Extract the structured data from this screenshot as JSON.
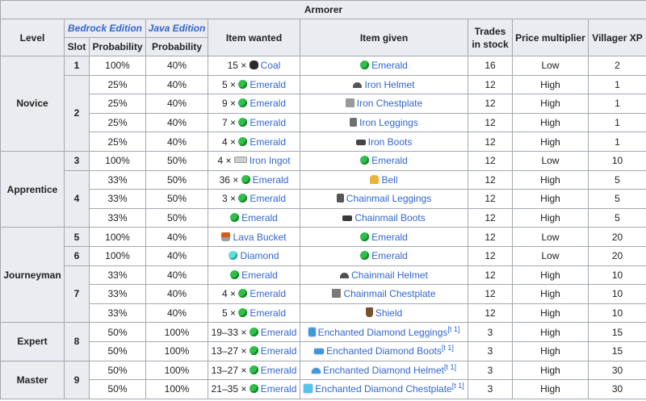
{
  "title": "Armorer",
  "headers": {
    "level": "Level",
    "bedrock": "Bedrock Edition",
    "java": "Java Edition",
    "slot": "Slot",
    "probability": "Probability",
    "item_wanted": "Item wanted",
    "item_given": "Item given",
    "trades_in_stock": "Trades in stock",
    "price_multiplier": "Price multiplier",
    "villager_xp": "Villager XP"
  },
  "levels": [
    {
      "name": "Novice",
      "slots": [
        {
          "slot": "1",
          "rows": [
            {
              "bp": "100%",
              "jp": "40%",
              "wq": "15 ×",
              "wicon": "coal-icon",
              "wname": "Coal",
              "gicon": "emerald-icon",
              "gname": "Emerald",
              "gnote": "",
              "stock": "16",
              "mult": "Low",
              "xp": "2"
            }
          ]
        },
        {
          "slot": "2",
          "rows": [
            {
              "bp": "25%",
              "jp": "40%",
              "wq": "5 ×",
              "wicon": "emerald-icon",
              "wname": "Emerald",
              "gicon": "iron-helmet-icon",
              "gname": "Iron Helmet",
              "gnote": "",
              "stock": "12",
              "mult": "High",
              "xp": "1"
            },
            {
              "bp": "25%",
              "jp": "40%",
              "wq": "9 ×",
              "wicon": "emerald-icon",
              "wname": "Emerald",
              "gicon": "iron-chestplate-icon",
              "gname": "Iron Chestplate",
              "gnote": "",
              "stock": "12",
              "mult": "High",
              "xp": "1"
            },
            {
              "bp": "25%",
              "jp": "40%",
              "wq": "7 ×",
              "wicon": "emerald-icon",
              "wname": "Emerald",
              "gicon": "iron-leggings-icon",
              "gname": "Iron Leggings",
              "gnote": "",
              "stock": "12",
              "mult": "High",
              "xp": "1"
            },
            {
              "bp": "25%",
              "jp": "40%",
              "wq": "4 ×",
              "wicon": "emerald-icon",
              "wname": "Emerald",
              "gicon": "iron-boots-icon",
              "gname": "Iron Boots",
              "gnote": "",
              "stock": "12",
              "mult": "High",
              "xp": "1"
            }
          ]
        }
      ]
    },
    {
      "name": "Apprentice",
      "slots": [
        {
          "slot": "3",
          "rows": [
            {
              "bp": "100%",
              "jp": "50%",
              "wq": "4 ×",
              "wicon": "iron-ingot-icon",
              "wname": "Iron Ingot",
              "gicon": "emerald-icon",
              "gname": "Emerald",
              "gnote": "",
              "stock": "12",
              "mult": "Low",
              "xp": "10"
            }
          ]
        },
        {
          "slot": "4",
          "rows": [
            {
              "bp": "33%",
              "jp": "50%",
              "wq": "36 ×",
              "wicon": "emerald-icon",
              "wname": "Emerald",
              "gicon": "bell-icon",
              "gname": "Bell",
              "gnote": "",
              "stock": "12",
              "mult": "High",
              "xp": "5"
            },
            {
              "bp": "33%",
              "jp": "50%",
              "wq": "3 ×",
              "wicon": "emerald-icon",
              "wname": "Emerald",
              "gicon": "chainmail-leggings-icon",
              "gname": "Chainmail Leggings",
              "gnote": "",
              "stock": "12",
              "mult": "High",
              "xp": "5"
            },
            {
              "bp": "33%",
              "jp": "50%",
              "wq": "",
              "wicon": "emerald-icon",
              "wname": "Emerald",
              "gicon": "chainmail-boots-icon",
              "gname": "Chainmail Boots",
              "gnote": "",
              "stock": "12",
              "mult": "High",
              "xp": "5"
            }
          ]
        }
      ]
    },
    {
      "name": "Journeyman",
      "slots": [
        {
          "slot": "5",
          "rows": [
            {
              "bp": "100%",
              "jp": "40%",
              "wq": "",
              "wicon": "lava-bucket-icon",
              "wname": "Lava Bucket",
              "gicon": "emerald-icon",
              "gname": "Emerald",
              "gnote": "",
              "stock": "12",
              "mult": "Low",
              "xp": "20"
            }
          ]
        },
        {
          "slot": "6",
          "rows": [
            {
              "bp": "100%",
              "jp": "40%",
              "wq": "",
              "wicon": "diamond-icon",
              "wname": "Diamond",
              "gicon": "emerald-icon",
              "gname": "Emerald",
              "gnote": "",
              "stock": "12",
              "mult": "Low",
              "xp": "20"
            }
          ]
        },
        {
          "slot": "7",
          "rows": [
            {
              "bp": "33%",
              "jp": "40%",
              "wq": "",
              "wicon": "emerald-icon",
              "wname": "Emerald",
              "gicon": "chainmail-helmet-icon",
              "gname": "Chainmail Helmet",
              "gnote": "",
              "stock": "12",
              "mult": "High",
              "xp": "10"
            },
            {
              "bp": "33%",
              "jp": "40%",
              "wq": "4 ×",
              "wicon": "emerald-icon",
              "wname": "Emerald",
              "gicon": "chainmail-chestplate-icon",
              "gname": "Chainmail Chestplate",
              "gnote": "",
              "stock": "12",
              "mult": "High",
              "xp": "10"
            },
            {
              "bp": "33%",
              "jp": "40%",
              "wq": "5 ×",
              "wicon": "emerald-icon",
              "wname": "Emerald",
              "gicon": "shield-icon",
              "gname": "Shield",
              "gnote": "",
              "stock": "12",
              "mult": "High",
              "xp": "10"
            }
          ]
        }
      ]
    },
    {
      "name": "Expert",
      "slots": [
        {
          "slot": "8",
          "rows": [
            {
              "bp": "50%",
              "jp": "100%",
              "wq": "19–33 ×",
              "wicon": "emerald-icon",
              "wname": "Emerald",
              "gicon": "enchanted-diamond-leggings-icon",
              "gname": "Enchanted Diamond Leggings",
              "gnote": "[t 1]",
              "stock": "3",
              "mult": "High",
              "xp": "15"
            },
            {
              "bp": "50%",
              "jp": "100%",
              "wq": "13–27 ×",
              "wicon": "emerald-icon",
              "wname": "Emerald",
              "gicon": "enchanted-diamond-boots-icon",
              "gname": "Enchanted Diamond Boots",
              "gnote": "[t 1]",
              "stock": "3",
              "mult": "High",
              "xp": "15"
            }
          ]
        }
      ]
    },
    {
      "name": "Master",
      "slots": [
        {
          "slot": "9",
          "rows": [
            {
              "bp": "50%",
              "jp": "100%",
              "wq": "13–27 ×",
              "wicon": "emerald-icon",
              "wname": "Emerald",
              "gicon": "enchanted-diamond-helmet-icon",
              "gname": "Enchanted Diamond Helmet",
              "gnote": "[t 1]",
              "stock": "3",
              "mult": "High",
              "xp": "30"
            },
            {
              "bp": "50%",
              "jp": "100%",
              "wq": "21–35 ×",
              "wicon": "emerald-icon",
              "wname": "Emerald",
              "gicon": "enchanted-diamond-chestplate-icon",
              "gname": "Enchanted Diamond Chestplate",
              "gnote": "[t 1]",
              "stock": "3",
              "mult": "High",
              "xp": "30"
            }
          ]
        }
      ]
    }
  ]
}
